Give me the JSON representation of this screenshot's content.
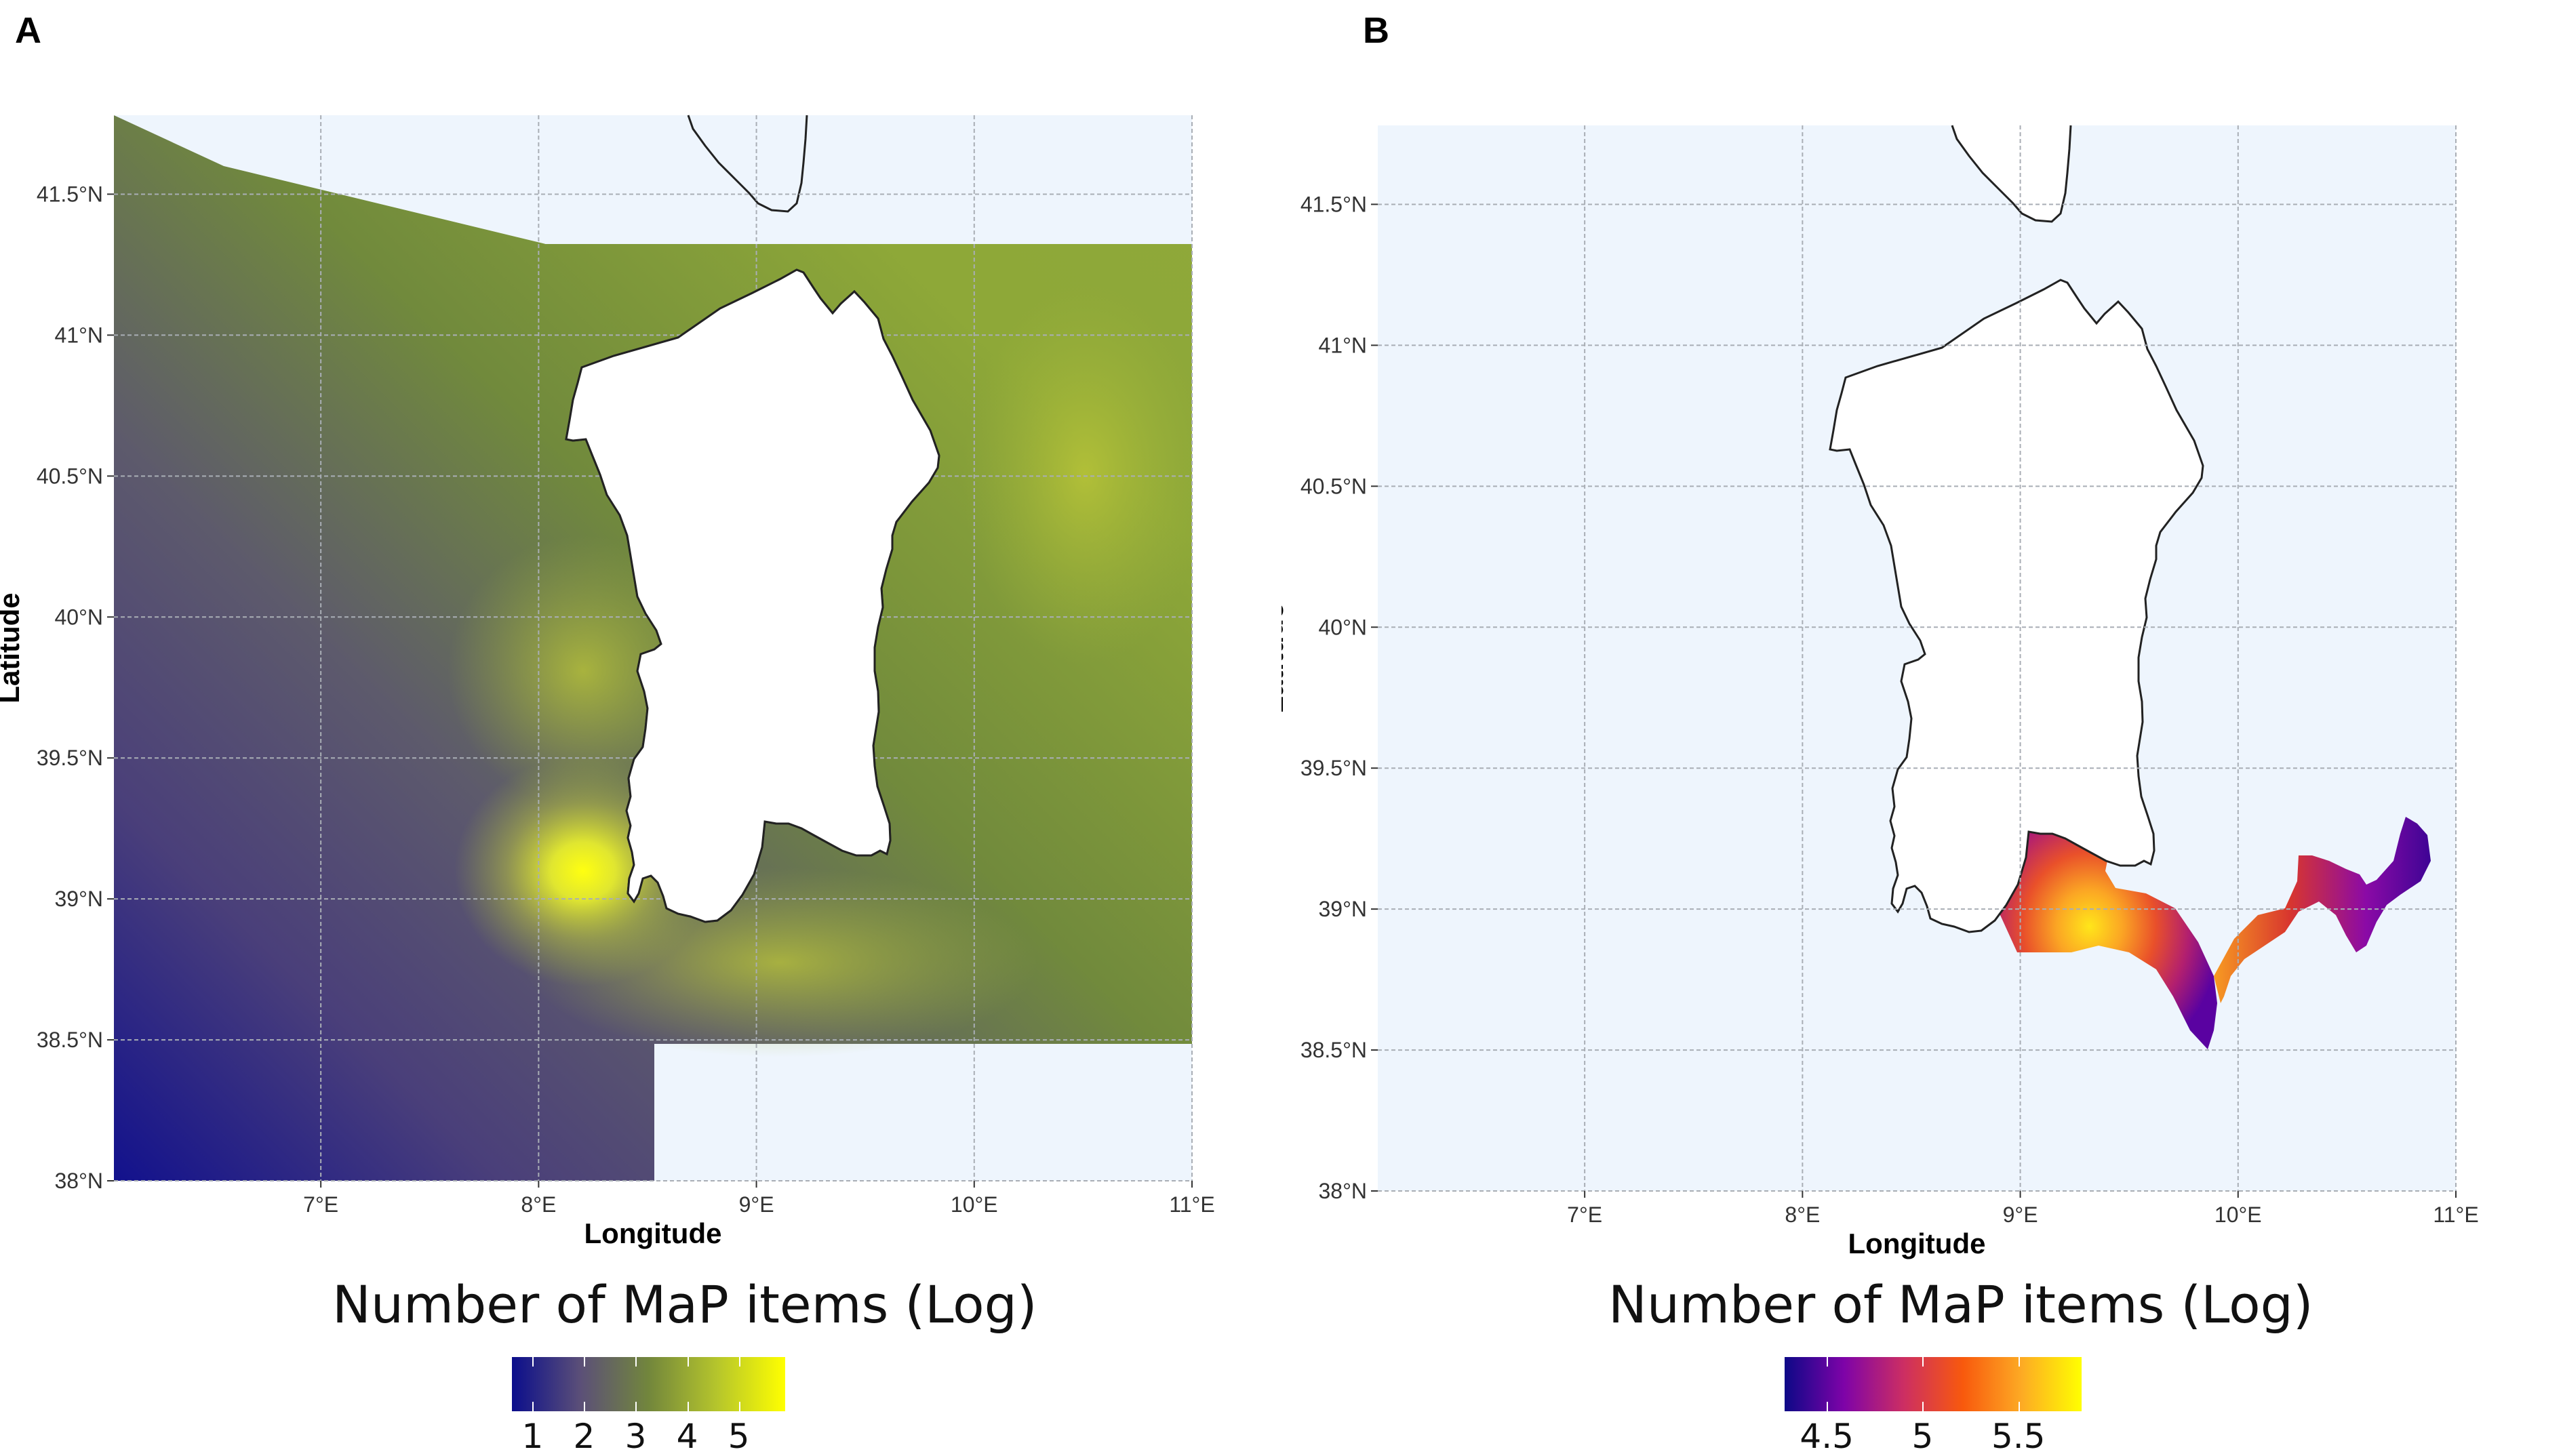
{
  "panels": [
    {
      "label": "A",
      "x_axis": {
        "label": "Longitude",
        "ticks": [
          "7°E",
          "8°E",
          "9°E",
          "10°E",
          "11°E"
        ],
        "range": [
          6.05,
          11.0
        ]
      },
      "y_axis": {
        "label": "Latitude",
        "ticks": [
          "38°N",
          "38.5°N",
          "39°N",
          "39.5°N",
          "40°N",
          "40.5°N",
          "41°N",
          "41.5°N"
        ],
        "range": [
          38.0,
          41.78
        ]
      },
      "legend": {
        "title": "Number of MaP items (Log)",
        "ticks": [
          "1",
          "2",
          "3",
          "4",
          "5"
        ],
        "min": 0.6,
        "max": 5.9,
        "colors": [
          "#0b0e8c",
          "#5b4f78",
          "#72863c",
          "#b5c52c",
          "#ffff00"
        ]
      }
    },
    {
      "label": "B",
      "x_axis": {
        "label": "Longitude",
        "ticks": [
          "7°E",
          "8°E",
          "9°E",
          "10°E",
          "11°E"
        ],
        "range": [
          6.05,
          11.0
        ]
      },
      "y_axis": {
        "label": "Latitude",
        "ticks": [
          "38°N",
          "38.5°N",
          "39°N",
          "39.5°N",
          "40°N",
          "40.5°N",
          "41°N",
          "41.5°N"
        ],
        "range": [
          38.0,
          41.78
        ]
      },
      "legend": {
        "title": "Number of MaP items (Log)",
        "ticks": [
          "4.5",
          "5",
          "5.5"
        ],
        "min": 4.28,
        "max": 5.83,
        "colors": [
          "#0d0887",
          "#7e03a8",
          "#cc2e63",
          "#f8590d",
          "#fdab24",
          "#ffff00"
        ]
      }
    }
  ],
  "style": {
    "sea_color": "#eef5fd",
    "grid_color": "#a9aeb5",
    "land_color": "#ffffff",
    "outline_color": "#222222"
  }
}
